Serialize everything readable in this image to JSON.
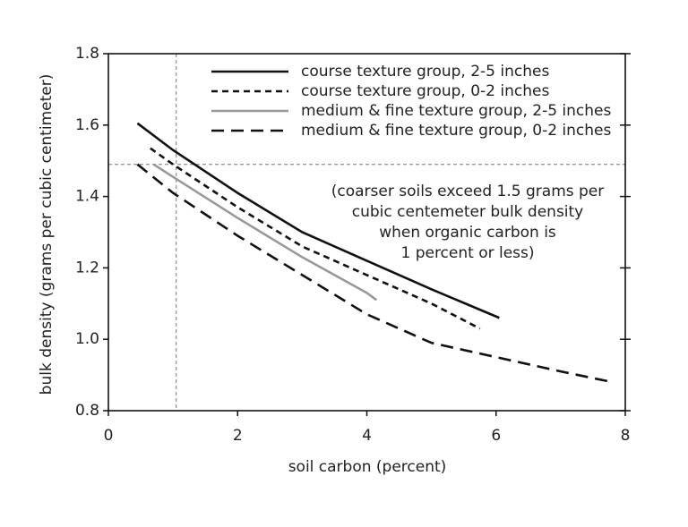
{
  "chart_data": {
    "type": "line",
    "xlabel": "soil carbon (percent)",
    "ylabel": "bulk density (grams per cubic centimeter)",
    "xlim": [
      0,
      8
    ],
    "xticks": [
      0,
      2,
      4,
      6,
      8
    ],
    "ylim": [
      0.8,
      1.8
    ],
    "yticks": [
      0.8,
      {
        "value": 1,
        "label": "1.0"
      },
      1.2,
      1.4,
      1.6,
      1.8
    ],
    "series": [
      {
        "name": "course texture group, 2-5 inches",
        "color": "#111111",
        "dash": "solid",
        "x": [
          0.45,
          1,
          2,
          3,
          4,
          5,
          6.05
        ],
        "values": [
          1.605,
          1.53,
          1.41,
          1.3,
          1.22,
          1.14,
          1.06
        ]
      },
      {
        "name": "course texture group, 0-2 inches",
        "color": "#111111",
        "dash": "short",
        "x": [
          0.65,
          1,
          2,
          3,
          4,
          5,
          5.75
        ],
        "values": [
          1.535,
          1.49,
          1.37,
          1.26,
          1.18,
          1.1,
          1.03
        ]
      },
      {
        "name": "medium & fine texture group, 2-5 inches",
        "color": "#999999",
        "dash": "solid",
        "x": [
          0.7,
          1,
          2,
          3,
          4,
          4.15
        ],
        "values": [
          1.49,
          1.455,
          1.34,
          1.23,
          1.13,
          1.11
        ]
      },
      {
        "name": "medium & fine texture group, 0-2 inches",
        "color": "#111111",
        "dash": "long",
        "x": [
          0.45,
          1,
          2,
          3,
          4,
          5,
          6,
          7,
          7.8
        ],
        "values": [
          1.49,
          1.41,
          1.29,
          1.18,
          1.07,
          0.99,
          0.95,
          0.91,
          0.88
        ]
      }
    ],
    "reference_lines": {
      "x": 1.05,
      "y": 1.49
    },
    "annotation": [
      "(coarser soils exceed 1.5 grams per",
      "cubic centemeter bulk density",
      "when organic carbon is",
      "1 percent or less)"
    ]
  }
}
